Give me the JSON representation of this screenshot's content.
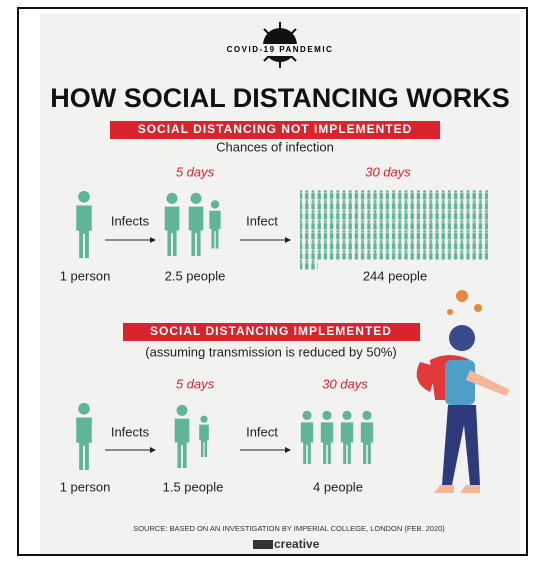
{
  "header": {
    "badge": "COVID-19 PANDEMIC",
    "title": "HOW SOCIAL DISTANCING WORKS"
  },
  "sections": [
    {
      "banner": "SOCIAL DISTANCING NOT IMPLEMENTED",
      "subtitle": "Chances of infection",
      "period_1": "5 days",
      "period_2": "30 days",
      "verb_1": "Infects",
      "verb_2": "Infect",
      "label_1": "1 person",
      "label_2": "2.5 people",
      "label_3": "244 people"
    },
    {
      "banner": "SOCIAL DISTANCING IMPLEMENTED",
      "subtitle": "(assuming transmission is reduced by 50%)",
      "period_1": "5 days",
      "period_2": "30 days",
      "verb_1": "Infects",
      "verb_2": "Infect",
      "label_1": "1 person",
      "label_2": "1.5 people",
      "label_3": "4 people"
    }
  ],
  "footer": {
    "source": "SOURCE: BASED ON AN INVESTIGATION BY IMPERIAL COLLEGE, LONDON (FEB. 2020)",
    "logo": "creative"
  }
}
